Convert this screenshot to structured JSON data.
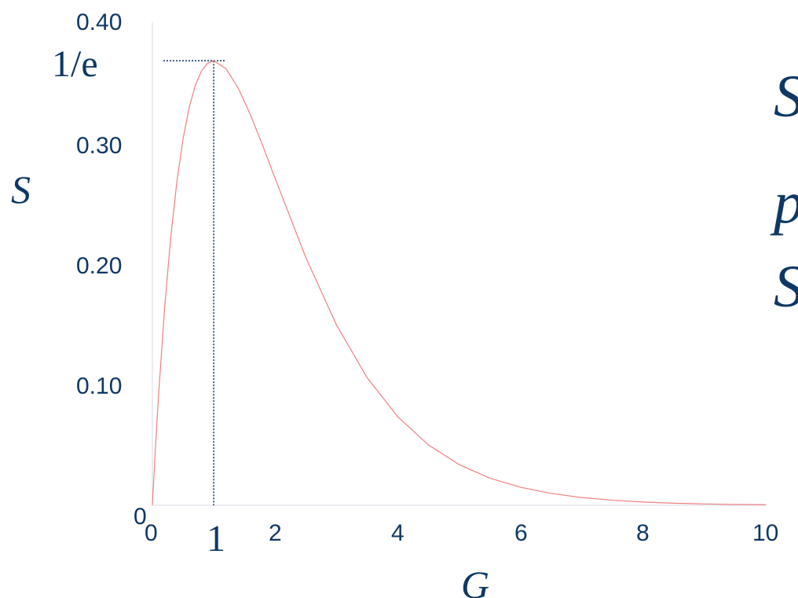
{
  "chart_data": {
    "type": "line",
    "title": "",
    "xlabel": "G",
    "ylabel": "S",
    "xlim": [
      0,
      10
    ],
    "ylim": [
      0,
      0.4
    ],
    "x_ticks": [
      "0",
      "2",
      "4",
      "6",
      "8",
      "10"
    ],
    "y_ticks": [
      "0",
      "0.10",
      "0.20",
      "0.30",
      "0.40"
    ],
    "annotations": {
      "peak_y_label": "1/e",
      "peak_x_label": "1"
    },
    "peak": {
      "x": 1,
      "y": 0.3679
    },
    "series": [
      {
        "color": "#f08080",
        "x": [
          0,
          0.05,
          0.1,
          0.2,
          0.3,
          0.4,
          0.5,
          0.6,
          0.7,
          0.8,
          0.9,
          1.0,
          1.2,
          1.4,
          1.6,
          1.8,
          2.0,
          2.5,
          3.0,
          3.5,
          4.0,
          4.5,
          5.0,
          5.5,
          6.0,
          6.5,
          7.0,
          7.5,
          8.0,
          8.5,
          9.0,
          9.5,
          10.0
        ],
        "values": [
          0,
          0.0476,
          0.0905,
          0.1637,
          0.2222,
          0.2681,
          0.3033,
          0.3293,
          0.3476,
          0.3595,
          0.3659,
          0.3679,
          0.3614,
          0.3452,
          0.323,
          0.2975,
          0.2707,
          0.2052,
          0.1494,
          0.1057,
          0.0733,
          0.05,
          0.0337,
          0.0225,
          0.0149,
          0.0098,
          0.0064,
          0.0042,
          0.0027,
          0.0017,
          0.0011,
          0.0007,
          0.0005
        ]
      }
    ],
    "grid": false,
    "legend": "none"
  },
  "side_text": [
    "S",
    "p",
    "S"
  ],
  "colors": {
    "axis": "#d0d0e0",
    "text": "#0f3864",
    "guide": "#0f3864",
    "curve": "#f08080"
  }
}
